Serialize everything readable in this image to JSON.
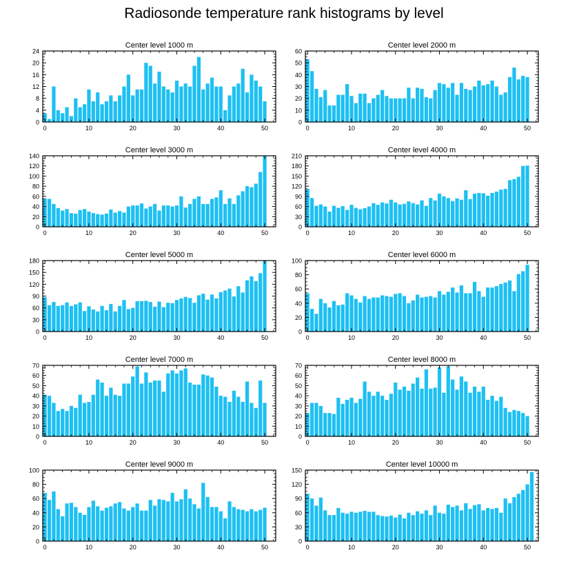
{
  "title": "Radiosonde temperature rank histograms by level",
  "style": {
    "bar_color": "#1ec0f2",
    "axis_color": "#000000",
    "background": "#ffffff"
  },
  "chart_data": [
    {
      "type": "bar",
      "title": "Center level 1000 m",
      "xlabel": "",
      "ylabel": "",
      "xlim": [
        -0.5,
        52.5
      ],
      "xticks": [
        0,
        10,
        20,
        30,
        40,
        50
      ],
      "ylim": [
        0,
        24
      ],
      "yticks": [
        0,
        4,
        8,
        12,
        16,
        20,
        24
      ],
      "values": [
        3,
        1,
        12,
        4,
        3,
        5,
        2,
        8,
        5,
        6,
        11,
        7,
        10,
        6,
        7,
        9,
        7,
        9,
        12,
        16,
        9,
        11,
        11,
        20,
        19,
        13,
        17,
        12,
        11,
        10,
        14,
        12,
        13,
        12,
        19,
        22,
        11,
        13,
        15,
        12,
        12,
        4,
        9,
        12,
        13,
        18,
        10,
        16,
        14,
        12,
        7
      ]
    },
    {
      "type": "bar",
      "title": "Center level 2000 m",
      "xlabel": "",
      "ylabel": "",
      "xlim": [
        -0.5,
        52.5
      ],
      "xticks": [
        0,
        10,
        20,
        30,
        40,
        50
      ],
      "ylim": [
        0,
        60
      ],
      "yticks": [
        0,
        10,
        20,
        30,
        40,
        50,
        60
      ],
      "values": [
        53,
        43,
        28,
        21,
        27,
        14,
        14,
        23,
        23,
        32,
        22,
        16,
        24,
        24,
        16,
        20,
        23,
        27,
        22,
        20,
        20,
        20,
        20,
        29,
        20,
        29,
        28,
        21,
        20,
        27,
        33,
        32,
        29,
        33,
        23,
        33,
        28,
        27,
        30,
        35,
        31,
        32,
        35,
        30,
        23,
        25,
        38,
        46,
        36,
        39,
        38
      ]
    },
    {
      "type": "bar",
      "title": "Center level 3000 m",
      "xlabel": "",
      "ylabel": "",
      "xlim": [
        -0.5,
        52.5
      ],
      "xticks": [
        0,
        10,
        20,
        30,
        40,
        50
      ],
      "ylim": [
        0,
        140
      ],
      "yticks": [
        0,
        20,
        40,
        60,
        80,
        100,
        120,
        140
      ],
      "values": [
        56,
        55,
        45,
        37,
        32,
        35,
        27,
        26,
        33,
        35,
        30,
        27,
        25,
        24,
        26,
        34,
        28,
        31,
        28,
        40,
        42,
        42,
        46,
        36,
        40,
        45,
        32,
        42,
        42,
        40,
        42,
        60,
        38,
        45,
        55,
        60,
        45,
        45,
        55,
        58,
        72,
        45,
        56,
        45,
        62,
        70,
        80,
        78,
        85,
        108,
        140
      ]
    },
    {
      "type": "bar",
      "title": "Center level 4000 m",
      "xlabel": "",
      "ylabel": "",
      "xlim": [
        -0.5,
        52.5
      ],
      "xticks": [
        0,
        10,
        20,
        30,
        40,
        50
      ],
      "ylim": [
        0,
        210
      ],
      "yticks": [
        0,
        30,
        60,
        90,
        120,
        150,
        180,
        210
      ],
      "values": [
        112,
        85,
        62,
        66,
        60,
        45,
        62,
        56,
        61,
        50,
        65,
        56,
        52,
        55,
        60,
        70,
        65,
        72,
        69,
        80,
        72,
        66,
        68,
        75,
        70,
        66,
        78,
        62,
        85,
        78,
        98,
        90,
        85,
        76,
        84,
        80,
        108,
        82,
        98,
        100,
        99,
        92,
        100,
        104,
        110,
        112,
        138,
        141,
        148,
        180,
        181
      ]
    },
    {
      "type": "bar",
      "title": "Center level 5000 m",
      "xlabel": "",
      "ylabel": "",
      "xlim": [
        -0.5,
        52.5
      ],
      "xticks": [
        0,
        10,
        20,
        30,
        40,
        50
      ],
      "ylim": [
        0,
        180
      ],
      "yticks": [
        0,
        30,
        60,
        90,
        120,
        150,
        180
      ],
      "values": [
        87,
        67,
        75,
        65,
        67,
        74,
        65,
        69,
        74,
        52,
        64,
        56,
        51,
        65,
        54,
        70,
        51,
        65,
        80,
        57,
        60,
        77,
        77,
        78,
        75,
        63,
        76,
        62,
        73,
        72,
        80,
        84,
        88,
        85,
        73,
        92,
        96,
        81,
        94,
        84,
        100,
        104,
        109,
        89,
        115,
        99,
        130,
        140,
        128,
        148,
        180
      ]
    },
    {
      "type": "bar",
      "title": "Center level 6000 m",
      "xlabel": "",
      "ylabel": "",
      "xlim": [
        -0.5,
        52.5
      ],
      "xticks": [
        0,
        10,
        20,
        30,
        40,
        50
      ],
      "ylim": [
        0,
        100
      ],
      "yticks": [
        0,
        20,
        40,
        60,
        80,
        100
      ],
      "values": [
        54,
        32,
        25,
        46,
        40,
        34,
        43,
        37,
        38,
        54,
        51,
        46,
        41,
        50,
        46,
        48,
        48,
        51,
        50,
        49,
        53,
        54,
        50,
        40,
        44,
        52,
        48,
        49,
        50,
        48,
        57,
        52,
        56,
        62,
        55,
        65,
        54,
        54,
        70,
        57,
        49,
        62,
        62,
        64,
        67,
        69,
        72,
        57,
        81,
        85,
        94
      ]
    },
    {
      "type": "bar",
      "title": "Center level 7000 m",
      "xlabel": "",
      "ylabel": "",
      "xlim": [
        -0.5,
        52.5
      ],
      "xticks": [
        0,
        10,
        20,
        30,
        40,
        50
      ],
      "ylim": [
        0,
        70
      ],
      "yticks": [
        0,
        10,
        20,
        30,
        40,
        50,
        60,
        70
      ],
      "values": [
        41,
        40,
        33,
        25,
        27,
        25,
        30,
        28,
        41,
        33,
        34,
        41,
        56,
        53,
        40,
        48,
        41,
        40,
        52,
        52,
        59,
        69,
        52,
        63,
        53,
        55,
        55,
        44,
        62,
        65,
        62,
        65,
        67,
        53,
        51,
        51,
        61,
        60,
        58,
        49,
        40,
        39,
        34,
        45,
        39,
        34,
        54,
        33,
        28,
        55,
        33
      ]
    },
    {
      "type": "bar",
      "title": "Center level 8000 m",
      "xlabel": "",
      "ylabel": "",
      "xlim": [
        -0.5,
        52.5
      ],
      "xticks": [
        0,
        10,
        20,
        30,
        40,
        50
      ],
      "ylim": [
        0,
        70
      ],
      "yticks": [
        0,
        10,
        20,
        30,
        40,
        50,
        60,
        70
      ],
      "values": [
        23,
        33,
        33,
        30,
        23,
        23,
        22,
        38,
        32,
        36,
        38,
        33,
        37,
        54,
        44,
        40,
        44,
        40,
        36,
        42,
        53,
        46,
        49,
        45,
        52,
        58,
        47,
        66,
        47,
        48,
        68,
        43,
        69,
        56,
        46,
        59,
        54,
        43,
        49,
        44,
        49,
        36,
        40,
        35,
        39,
        28,
        24,
        26,
        25,
        23,
        20
      ]
    },
    {
      "type": "bar",
      "title": "Center level 9000 m",
      "xlabel": "",
      "ylabel": "",
      "xlim": [
        -0.5,
        52.5
      ],
      "xticks": [
        0,
        10,
        20,
        30,
        40,
        50
      ],
      "ylim": [
        0,
        100
      ],
      "yticks": [
        0,
        20,
        40,
        60,
        80,
        100
      ],
      "values": [
        68,
        58,
        70,
        45,
        35,
        53,
        54,
        48,
        40,
        37,
        48,
        57,
        49,
        43,
        47,
        49,
        53,
        55,
        46,
        43,
        48,
        53,
        43,
        43,
        58,
        50,
        59,
        58,
        56,
        68,
        56,
        59,
        73,
        60,
        52,
        46,
        82,
        62,
        48,
        48,
        42,
        32,
        56,
        48,
        45,
        44,
        42,
        45,
        42,
        44,
        47
      ]
    },
    {
      "type": "bar",
      "title": "Center level 10000 m",
      "xlabel": "",
      "ylabel": "",
      "xlim": [
        -0.5,
        52.5
      ],
      "xticks": [
        0,
        10,
        20,
        30,
        40,
        50
      ],
      "ylim": [
        0,
        150
      ],
      "yticks": [
        0,
        30,
        60,
        90,
        120,
        150
      ],
      "values": [
        100,
        90,
        75,
        92,
        65,
        55,
        55,
        70,
        60,
        58,
        62,
        60,
        62,
        64,
        62,
        62,
        55,
        53,
        52,
        54,
        50,
        56,
        48,
        60,
        55,
        63,
        58,
        65,
        55,
        75,
        60,
        58,
        77,
        72,
        75,
        65,
        80,
        68,
        76,
        78,
        65,
        70,
        68,
        70,
        60,
        90,
        80,
        93,
        100,
        108,
        120,
        146
      ]
    }
  ]
}
